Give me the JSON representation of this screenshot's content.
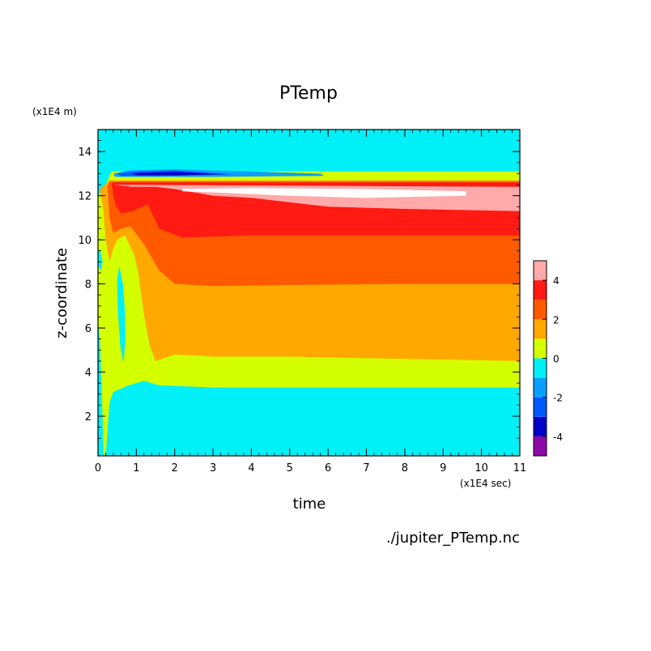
{
  "chart_data": {
    "type": "heatmap",
    "title": "PTemp",
    "xlabel": "time",
    "ylabel": "z-coordinate",
    "x_unit": "(x1E4 sec)",
    "y_unit": "(x1E4 m)",
    "source": "./jupiter_PTemp.nc",
    "xlim": [
      0,
      11
    ],
    "ylim": [
      0.2,
      15
    ],
    "x_ticks": [
      "0",
      "1",
      "2",
      "3",
      "4",
      "5",
      "6",
      "7",
      "8",
      "9",
      "10",
      "11"
    ],
    "y_ticks": [
      "2",
      "4",
      "6",
      "8",
      "10",
      "12",
      "14"
    ],
    "grid": false,
    "colorbar": {
      "placement": "right",
      "levels": [
        -5,
        -4,
        -3,
        -2,
        -1,
        0,
        1,
        2,
        3,
        4,
        5
      ],
      "tick_labels": [
        "-4",
        "-2",
        "0",
        "2",
        "4"
      ],
      "colors": [
        "#8e0aa8",
        "#0000c8",
        "#0058ff",
        "#0aa0ff",
        "#00f0f8",
        "#d4ff00",
        "#ffa800",
        "#ff5a00",
        "#ff1a14",
        "#ffaaaa"
      ]
    },
    "bands_at_steady_state": [
      {
        "z_range": [
          0.2,
          3.3
        ],
        "level": "-1 to 0"
      },
      {
        "z_range": [
          3.3,
          4.5
        ],
        "level": "0 to 1"
      },
      {
        "z_range": [
          4.5,
          8.0
        ],
        "level": "1 to 2"
      },
      {
        "z_range": [
          8.0,
          10.2
        ],
        "level": "2 to 3"
      },
      {
        "z_range": [
          10.2,
          11.3
        ],
        "level": "3 to 4"
      },
      {
        "z_range": [
          11.3,
          12.4
        ],
        "level": "4 to 5"
      },
      {
        "z_range": [
          12.4,
          12.7
        ],
        "level": "3 to 4"
      },
      {
        "z_range": [
          12.7,
          13.1
        ],
        "level": "0 to 1"
      },
      {
        "z_range": [
          13.1,
          15.0
        ],
        "level": "-1 to 0"
      }
    ]
  }
}
